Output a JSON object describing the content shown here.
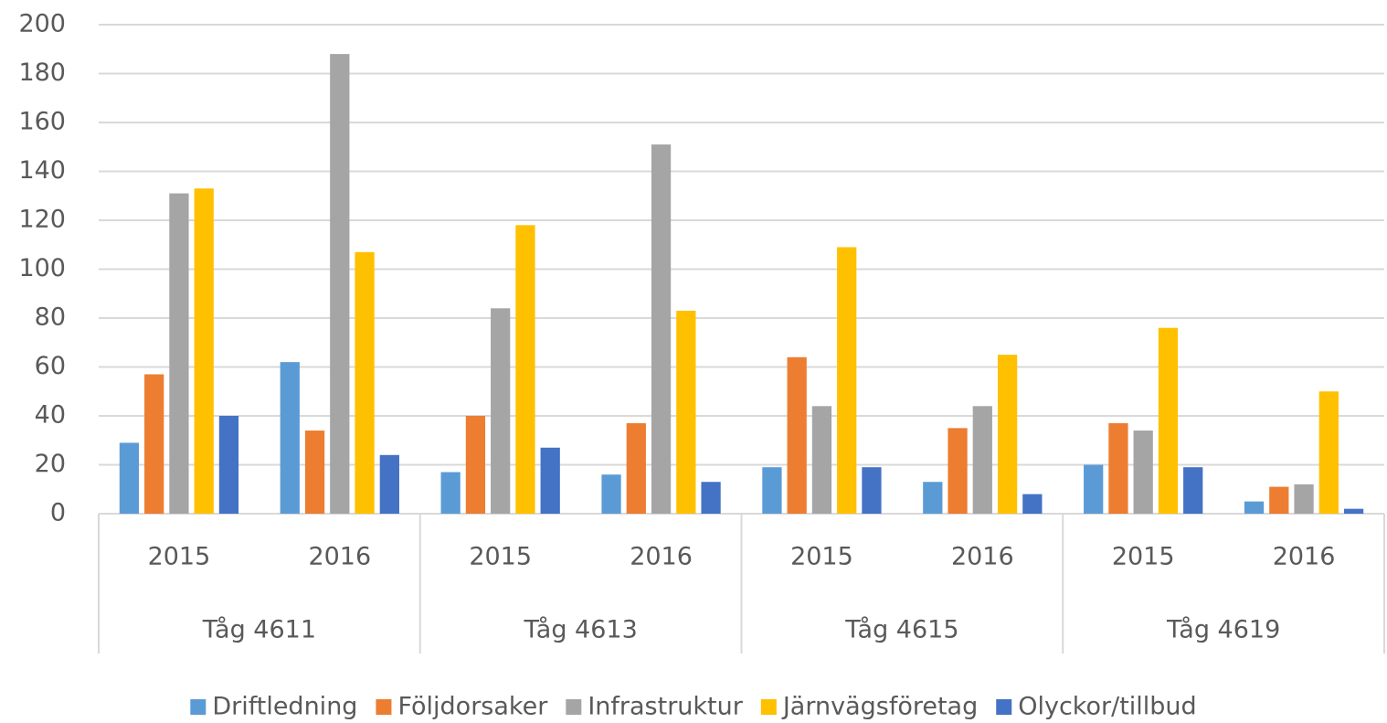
{
  "chart_data": {
    "type": "bar",
    "categories": [
      "2015",
      "2016",
      "2015",
      "2016",
      "2015",
      "2016",
      "2015",
      "2016"
    ],
    "groups": [
      "Tåg 4611",
      "Tåg 4613",
      "Tåg 4615",
      "Tåg 4619"
    ],
    "series": [
      {
        "name": "Driftledning",
        "color": "#5b9bd5",
        "values": [
          29,
          62,
          17,
          16,
          19,
          13,
          20,
          5
        ]
      },
      {
        "name": "Följdorsaker",
        "color": "#ed7d31",
        "values": [
          57,
          34,
          40,
          37,
          64,
          35,
          37,
          11
        ]
      },
      {
        "name": "Infrastruktur",
        "color": "#a5a5a5",
        "values": [
          131,
          188,
          84,
          151,
          44,
          44,
          34,
          12
        ]
      },
      {
        "name": "Järnvägsföretag",
        "color": "#ffc000",
        "values": [
          133,
          107,
          118,
          83,
          109,
          65,
          76,
          50
        ]
      },
      {
        "name": "Olyckor/tillbud",
        "color": "#4472c4",
        "values": [
          40,
          24,
          27,
          13,
          19,
          8,
          19,
          2
        ]
      }
    ],
    "ylim": [
      0,
      200
    ],
    "yticks": [
      0,
      20,
      40,
      60,
      80,
      100,
      120,
      140,
      160,
      180,
      200
    ],
    "grid": true,
    "legend": "bottom"
  }
}
